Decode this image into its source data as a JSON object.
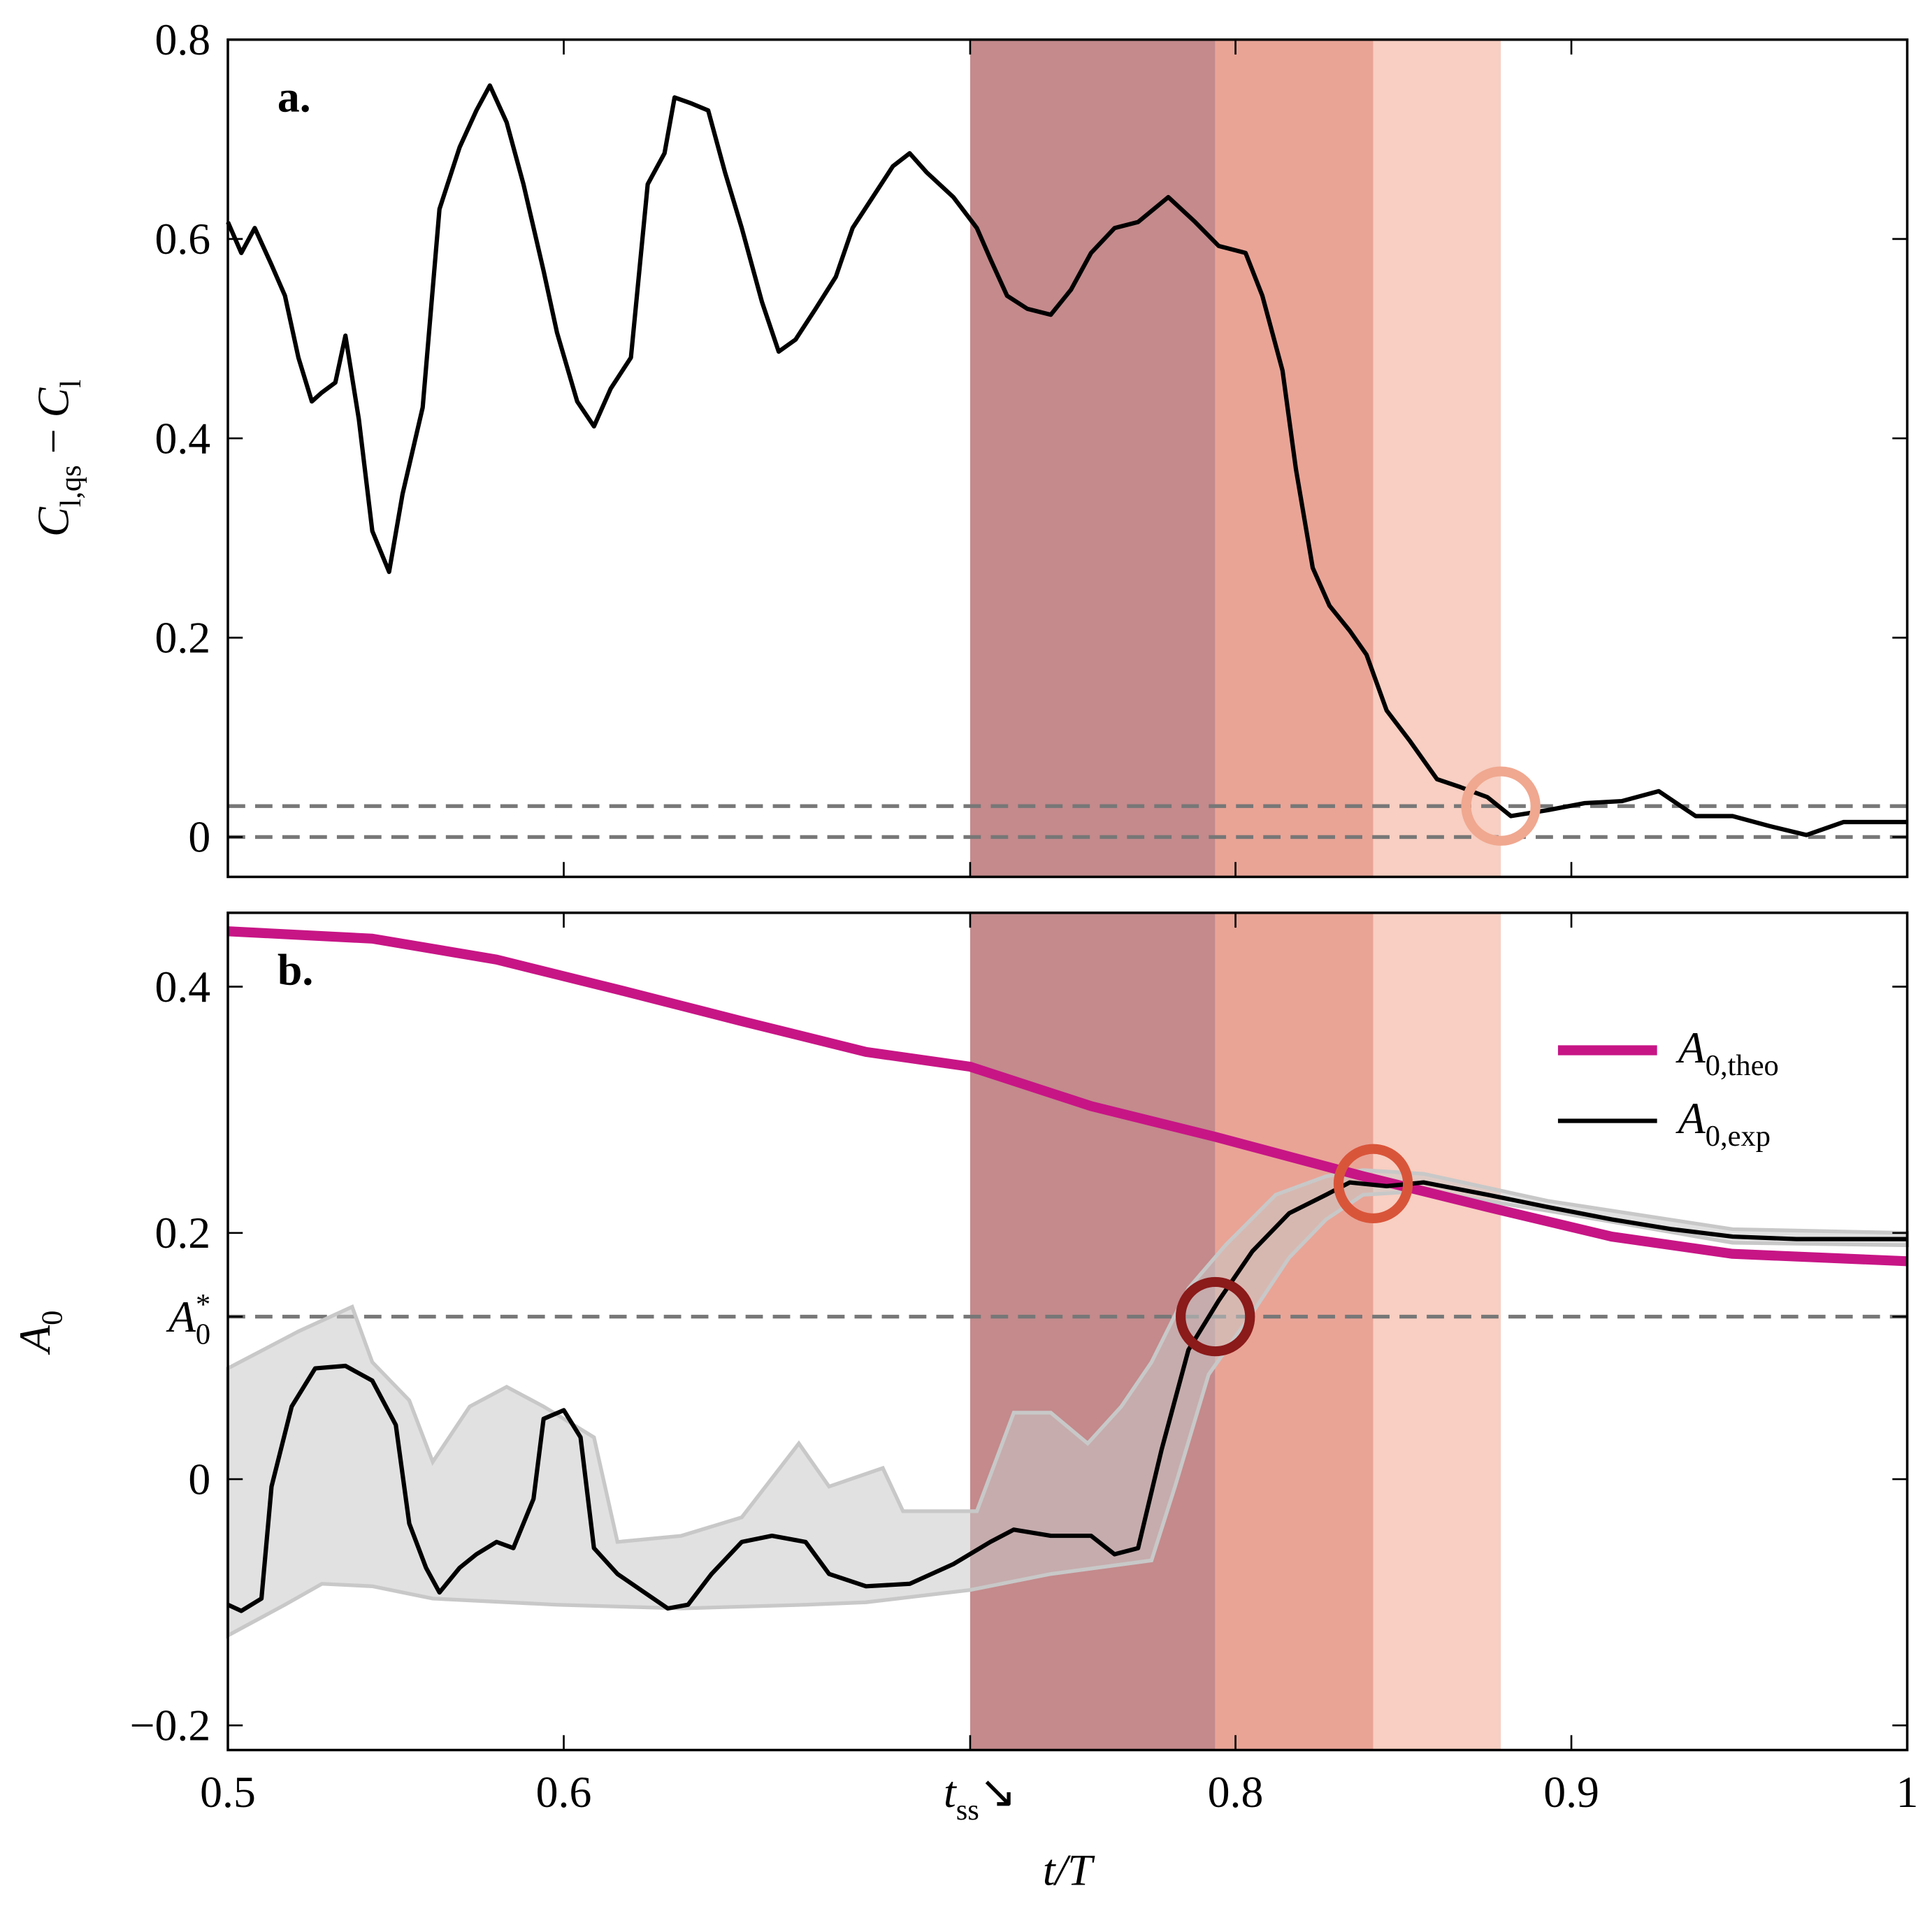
{
  "chart_data": [
    {
      "type": "line",
      "panel_label": "a.",
      "ylabel": [
        "C",
        "l,qs",
        " − ",
        "C",
        "l"
      ],
      "xlim": [
        0.5,
        1
      ],
      "ylim": [
        -0.04,
        0.8
      ],
      "xticks": [
        0.5,
        0.6,
        0.721,
        0.8,
        0.9,
        1
      ],
      "yticks": [
        0,
        0.2,
        0.4,
        0.6,
        0.8
      ],
      "shaded_regions": [
        {
          "x": [
            0.721,
            0.794
          ],
          "color": "#c48a8c"
        },
        {
          "x": [
            0.794,
            0.841
          ],
          "color": "#e9a496"
        },
        {
          "x": [
            0.841,
            0.879
          ],
          "color": "#f8cfc2"
        }
      ],
      "hlines": [
        {
          "y": 0,
          "color": "#777777"
        },
        {
          "y": 0.031,
          "color": "#777777"
        }
      ],
      "markers": [
        {
          "x": 0.879,
          "y": 0.031,
          "color": "#f0a890"
        }
      ],
      "series": [
        {
          "color": "#000000",
          "x": [
            0.5,
            0.504,
            0.508,
            0.513,
            0.517,
            0.521,
            0.525,
            0.528,
            0.532,
            0.535,
            0.539,
            0.543,
            0.548,
            0.552,
            0.558,
            0.563,
            0.569,
            0.574,
            0.578,
            0.583,
            0.588,
            0.594,
            0.598,
            0.604,
            0.609,
            0.614,
            0.62,
            0.625,
            0.63,
            0.633,
            0.638,
            0.643,
            0.648,
            0.653,
            0.659,
            0.664,
            0.669,
            0.675,
            0.681,
            0.686,
            0.692,
            0.698,
            0.703,
            0.708,
            0.716,
            0.723,
            0.727,
            0.732,
            0.738,
            0.745,
            0.751,
            0.757,
            0.764,
            0.771,
            0.78,
            0.788,
            0.795,
            0.803,
            0.808,
            0.814,
            0.818,
            0.823,
            0.828,
            0.834,
            0.839,
            0.845,
            0.852,
            0.86,
            0.867,
            0.875,
            0.882,
            0.893,
            0.904,
            0.915,
            0.926,
            0.937,
            0.948,
            0.959,
            0.97,
            0.981,
            1
          ],
          "values": [
            0.617,
            0.586,
            0.611,
            0.574,
            0.543,
            0.481,
            0.437,
            0.446,
            0.456,
            0.503,
            0.419,
            0.307,
            0.266,
            0.344,
            0.431,
            0.63,
            0.692,
            0.729,
            0.754,
            0.717,
            0.655,
            0.568,
            0.506,
            0.437,
            0.412,
            0.45,
            0.481,
            0.655,
            0.686,
            0.742,
            0.736,
            0.729,
            0.667,
            0.611,
            0.537,
            0.487,
            0.499,
            0.53,
            0.562,
            0.611,
            0.642,
            0.673,
            0.686,
            0.667,
            0.642,
            0.611,
            0.58,
            0.543,
            0.53,
            0.524,
            0.549,
            0.586,
            0.611,
            0.617,
            0.642,
            0.617,
            0.593,
            0.586,
            0.543,
            0.468,
            0.369,
            0.27,
            0.232,
            0.207,
            0.183,
            0.127,
            0.096,
            0.058,
            0.05,
            0.04,
            0.021,
            0.027,
            0.034,
            0.036,
            0.046,
            0.021,
            0.021,
            0.011,
            0.002,
            0.015,
            0.015
          ]
        }
      ]
    },
    {
      "type": "line",
      "panel_label": "b.",
      "ylabel": [
        "A",
        "0"
      ],
      "xlabel": "t/T",
      "xlim": [
        0.5,
        1
      ],
      "ylim": [
        -0.22,
        0.46
      ],
      "xticks": [
        {
          "value": 0.5,
          "label": "0.5"
        },
        0.6,
        {
          "value": 0.721,
          "label": [
            "t",
            "ss",
            "↘"
          ]
        },
        0.8,
        0.9,
        1
      ],
      "yticks": [
        {
          "value": -0.2,
          "label": "−0.2"
        },
        0,
        0.2,
        {
          "value": 0.132,
          "label": [
            "A",
            "0",
            "*"
          ]
        },
        0.4
      ],
      "shaded_regions": [
        {
          "x": [
            0.721,
            0.794
          ],
          "color": "#c48a8c"
        },
        {
          "x": [
            0.794,
            0.841
          ],
          "color": "#e9a496"
        },
        {
          "x": [
            0.841,
            0.879
          ],
          "color": "#f8cfc2"
        }
      ],
      "hlines": [
        {
          "y": 0.132,
          "color": "#777777"
        }
      ],
      "band": {
        "color": "#c8c8c8",
        "upper": {
          "x": [
            0.5,
            0.521,
            0.537,
            0.543,
            0.554,
            0.561,
            0.572,
            0.583,
            0.594,
            0.609,
            0.616,
            0.635,
            0.653,
            0.67,
            0.679,
            0.695,
            0.701,
            0.723,
            0.734,
            0.745,
            0.756,
            0.766,
            0.775,
            0.786,
            0.797,
            0.812,
            0.827,
            0.838,
            0.856,
            0.893,
            0.948,
            1
          ],
          "values": [
            0.09,
            0.12,
            0.14,
            0.095,
            0.064,
            0.014,
            0.059,
            0.075,
            0.059,
            0.034,
            -0.051,
            -0.046,
            -0.031,
            0.029,
            -0.006,
            0.009,
            -0.026,
            -0.026,
            0.054,
            0.054,
            0.029,
            0.059,
            0.095,
            0.155,
            0.19,
            0.231,
            0.246,
            0.251,
            0.248,
            0.226,
            0.203,
            0.2
          ]
        },
        "lower": {
          "x": [
            0.5,
            0.517,
            0.528,
            0.543,
            0.561,
            0.598,
            0.635,
            0.672,
            0.69,
            0.721,
            0.745,
            0.775,
            0.782,
            0.792,
            0.805,
            0.816,
            0.827,
            0.838,
            0.856,
            0.893,
            0.948,
            1
          ],
          "values": [
            -0.127,
            -0.102,
            -0.085,
            -0.087,
            -0.097,
            -0.102,
            -0.105,
            -0.102,
            -0.1,
            -0.09,
            -0.077,
            -0.066,
            -0.006,
            0.085,
            0.135,
            0.18,
            0.211,
            0.231,
            0.234,
            0.218,
            0.192,
            0.19
          ]
        }
      },
      "markers": [
        {
          "x": 0.794,
          "y": 0.132,
          "color": "#8b1a1a"
        },
        {
          "x": 0.841,
          "y": 0.24,
          "color": "#d9553a"
        }
      ],
      "legend": "upper right",
      "series": [
        {
          "name": [
            "A",
            "0,theo"
          ],
          "color": "#c71585",
          "width": 8,
          "x": [
            0.5,
            0.543,
            0.58,
            0.617,
            0.653,
            0.69,
            0.721,
            0.757,
            0.794,
            0.838,
            0.875,
            0.912,
            0.948,
            1
          ],
          "values": [
            0.445,
            0.439,
            0.422,
            0.397,
            0.372,
            0.347,
            0.335,
            0.303,
            0.278,
            0.246,
            0.221,
            0.197,
            0.183,
            0.177
          ]
        },
        {
          "name": [
            "A",
            "0,exp"
          ],
          "color": "#000000",
          "width": 3.5,
          "x": [
            0.5,
            0.504,
            0.51,
            0.513,
            0.519,
            0.526,
            0.535,
            0.543,
            0.55,
            0.554,
            0.559,
            0.563,
            0.569,
            0.574,
            0.58,
            0.585,
            0.591,
            0.594,
            0.6,
            0.605,
            0.609,
            0.616,
            0.624,
            0.631,
            0.637,
            0.644,
            0.653,
            0.662,
            0.672,
            0.679,
            0.69,
            0.703,
            0.716,
            0.727,
            0.734,
            0.745,
            0.757,
            0.764,
            0.771,
            0.778,
            0.786,
            0.795,
            0.805,
            0.816,
            0.827,
            0.834,
            0.845,
            0.856,
            0.875,
            0.893,
            0.912,
            0.93,
            0.948,
            0.967,
            1
          ],
          "values": [
            -0.102,
            -0.107,
            -0.097,
            -0.006,
            0.059,
            0.09,
            0.092,
            0.08,
            0.044,
            -0.036,
            -0.072,
            -0.092,
            -0.072,
            -0.061,
            -0.051,
            -0.056,
            -0.016,
            0.049,
            0.056,
            0.034,
            -0.056,
            -0.077,
            -0.092,
            -0.105,
            -0.102,
            -0.077,
            -0.051,
            -0.046,
            -0.051,
            -0.077,
            -0.087,
            -0.085,
            -0.069,
            -0.051,
            -0.041,
            -0.046,
            -0.046,
            -0.061,
            -0.056,
            0.024,
            0.105,
            0.145,
            0.185,
            0.216,
            0.231,
            0.241,
            0.238,
            0.241,
            0.231,
            0.221,
            0.211,
            0.203,
            0.197,
            0.195,
            0.195
          ]
        }
      ]
    }
  ]
}
